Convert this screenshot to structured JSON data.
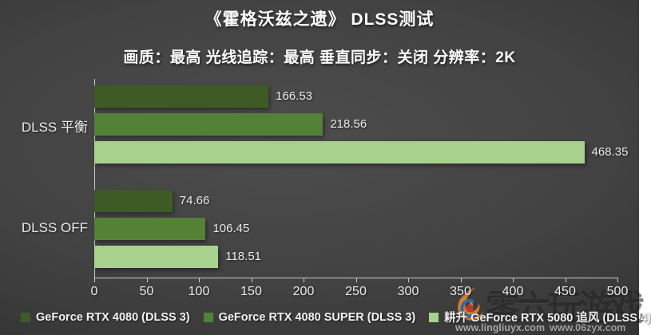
{
  "header": {
    "title": "《霍格沃兹之遗》 DLSS测试",
    "subtitle": "画质：最高  光线追踪：最高 垂直同步：关闭  分辨率：2K"
  },
  "chart_data": {
    "type": "bar",
    "orientation": "horizontal",
    "title": "《霍格沃兹之遗》 DLSS测试",
    "subtitle": "画质：最高  光线追踪：最高 垂直同步：关闭  分辨率：2K",
    "categories": [
      "DLSS 平衡",
      "DLSS  OFF"
    ],
    "series": [
      {
        "name": "GeForce RTX 4080 (DLSS 3)",
        "color": "#3e5b25",
        "values": [
          166.53,
          74.66
        ]
      },
      {
        "name": "GeForce RTX 4080 SUPER (DLSS 3)",
        "color": "#538135",
        "values": [
          218.56,
          106.45
        ]
      },
      {
        "name": "耕升 GeForce RTX 5080 追风 (DLSS  4)",
        "color": "#a9d18e",
        "values": [
          468.35,
          118.51
        ]
      }
    ],
    "xlim": [
      0,
      500
    ],
    "xticks": [
      0,
      50,
      100,
      150,
      200,
      250,
      300,
      350,
      400,
      450,
      500
    ],
    "grid": false,
    "legend_position": "bottom",
    "value_label_decimals": 2
  },
  "watermark": {
    "logo": "flame-swirl-logo",
    "brand_text": "零六玩游戏",
    "url_left": "www.lingliuyx.com",
    "url_right": "www.06zyx.com"
  },
  "colors": {
    "background_center": "#4d4d4d",
    "background_edge": "#2a2a2a",
    "axis": "#c9c9c9",
    "text": "#ececec",
    "title_text": "#ffffff",
    "bar_dark_green": "#3e5b25",
    "bar_medium_green": "#538135",
    "bar_light_green": "#a9d18e"
  }
}
